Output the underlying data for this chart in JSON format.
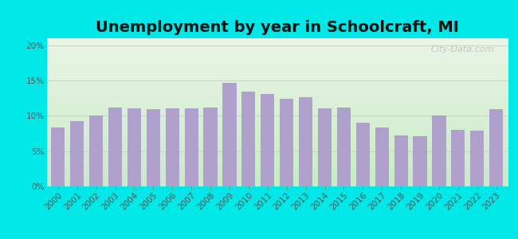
{
  "title": "Unemployment by year in Schoolcraft, MI",
  "years": [
    2000,
    2001,
    2002,
    2003,
    2004,
    2005,
    2006,
    2007,
    2008,
    2009,
    2010,
    2011,
    2012,
    2013,
    2014,
    2015,
    2016,
    2017,
    2018,
    2019,
    2020,
    2021,
    2022,
    2023
  ],
  "values": [
    8.3,
    9.3,
    10.1,
    11.2,
    11.1,
    11.0,
    11.1,
    11.1,
    11.2,
    14.7,
    13.4,
    13.1,
    12.4,
    12.6,
    11.1,
    11.2,
    9.0,
    8.3,
    7.2,
    7.1,
    10.1,
    8.0,
    7.9,
    11.0
  ],
  "bar_color": "#b0a0cc",
  "background_outer": "#00e8e8",
  "background_inner_top": "#e4ede0",
  "background_inner_bottom": "#c8e8c8",
  "grid_color": "#c8d8c0",
  "title_fontsize": 14,
  "tick_fontsize": 7.5,
  "ytick_labels": [
    "0%",
    "5%",
    "10%",
    "15%",
    "20%"
  ],
  "ytick_values": [
    0,
    5,
    10,
    15,
    20
  ],
  "ylim": [
    0,
    21
  ],
  "watermark_text": "City-Data.com"
}
